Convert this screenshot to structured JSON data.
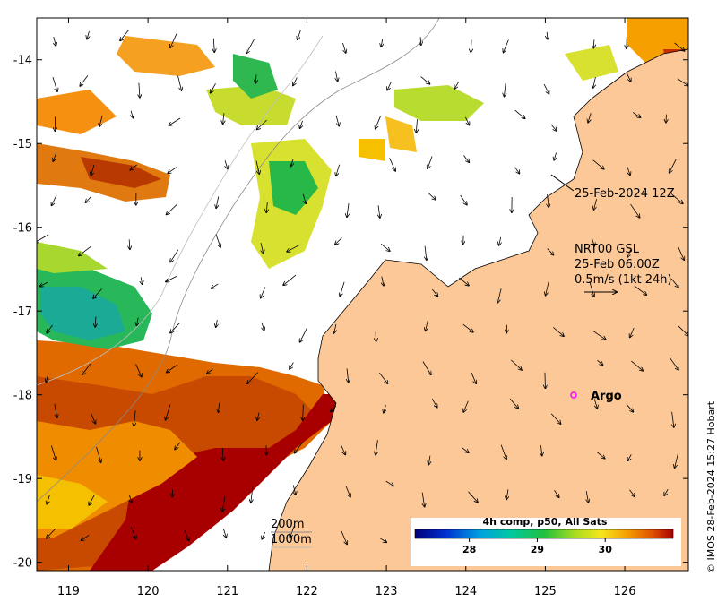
{
  "map": {
    "lon_ticks": [
      "119",
      "120",
      "121",
      "122",
      "123",
      "124",
      "125",
      "126"
    ],
    "lat_ticks": [
      "-14",
      "-15",
      "-16",
      "-17",
      "-18",
      "-19",
      "-20"
    ],
    "lon_range": [
      118.6,
      126.8
    ],
    "lat_range": [
      -20.1,
      -13.5
    ]
  },
  "annotations": {
    "date_label": "25-Feb-2024 12Z",
    "current_product": "NRT00 GSL",
    "current_time": "25-Feb 06:00Z",
    "current_scale": "0.5m/s (1kt 24h)",
    "depth_200": "200m",
    "depth_1000": "1000m",
    "argo_label": "Argo"
  },
  "colorbar": {
    "title": "4h comp, p50, All Sats",
    "ticks": [
      "28",
      "29",
      "30"
    ],
    "tick_values": [
      28,
      29,
      30
    ],
    "range": [
      27.2,
      31.0
    ]
  },
  "credit": "© IMOS 28-Feb-2024 15:27 Hobart",
  "colors": {
    "land": "#fdc898",
    "sst_high": "#a80000",
    "sst_orange": "#f08c00",
    "sst_yellow": "#f5e61e",
    "sst_green": "#2db84a",
    "sst_teal": "#1ab0a0",
    "argo": "#ff00ff"
  }
}
